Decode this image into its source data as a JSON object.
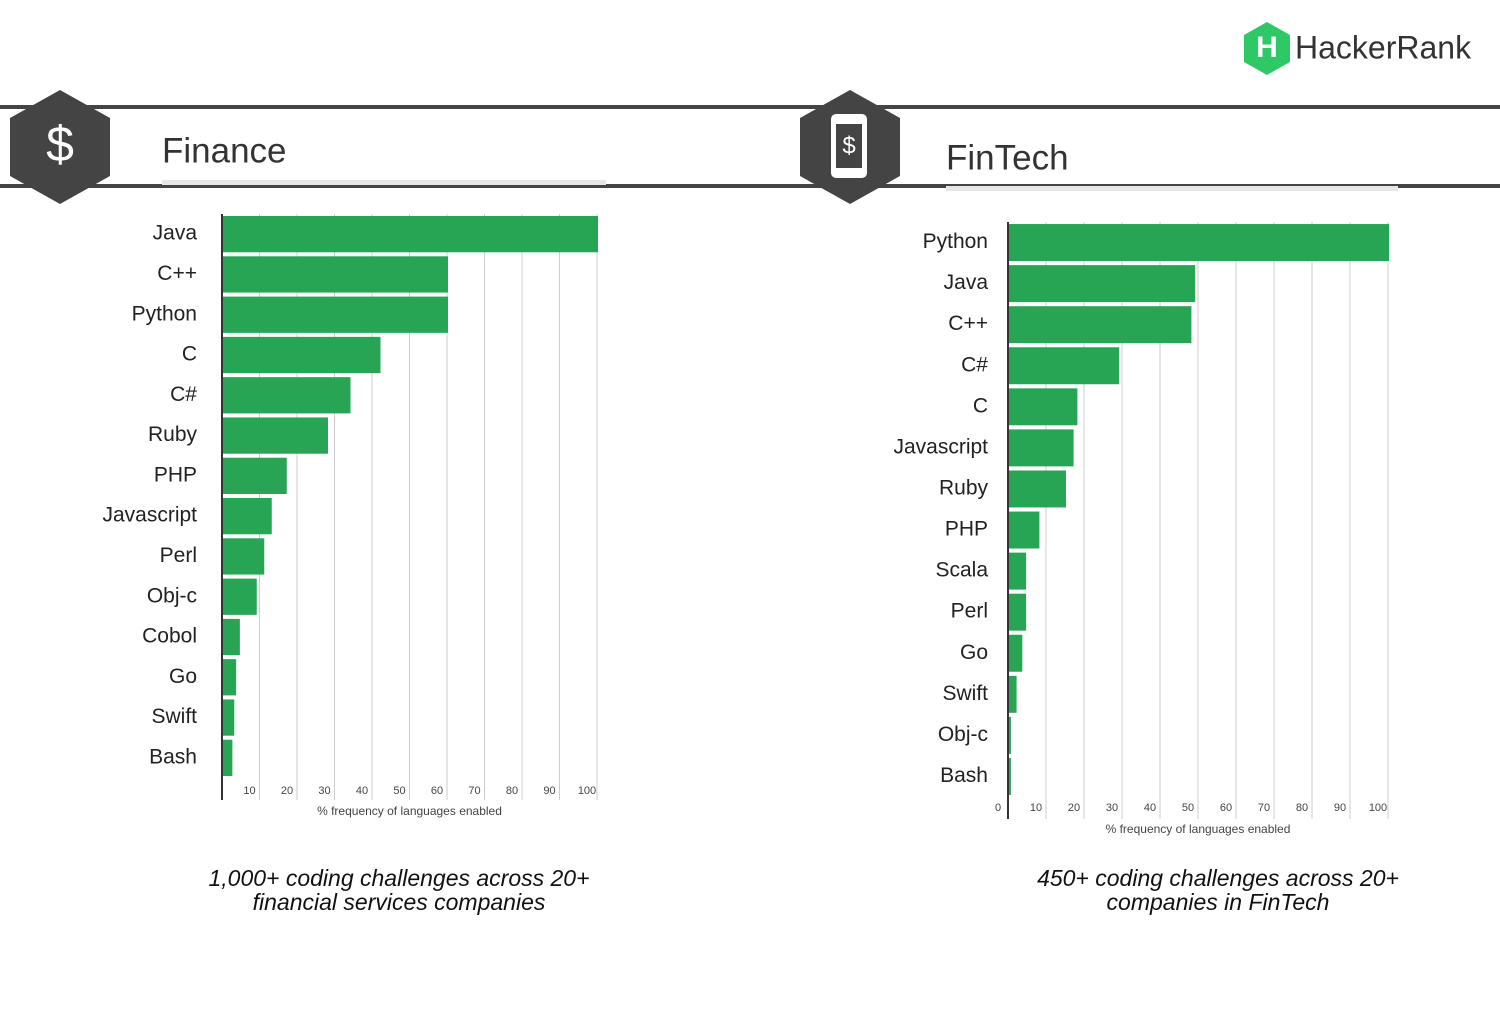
{
  "brand": "HackerRank",
  "chart_data": [
    {
      "type": "bar",
      "orientation": "horizontal",
      "title": "Finance",
      "categories": [
        "Java",
        "C++",
        "Python",
        "C",
        "C#",
        "Ruby",
        "PHP",
        "Javascript",
        "Perl",
        "Obj-c",
        "Cobol",
        "Go",
        "Swift",
        "Bash"
      ],
      "values": [
        100,
        60,
        60,
        42,
        34,
        28,
        17,
        13,
        11,
        9,
        4.5,
        3.5,
        3,
        2.5
      ],
      "color": "#27a555",
      "xlim": [
        0,
        100
      ],
      "xticks": [
        10,
        20,
        30,
        40,
        50,
        60,
        70,
        80,
        90,
        100
      ],
      "grid": true,
      "xlabel": "% frequency of languages enabled",
      "caption": [
        "1,000+ coding challenges across 20+",
        "financial services companies"
      ]
    },
    {
      "type": "bar",
      "orientation": "horizontal",
      "title": "FinTech",
      "categories": [
        "Python",
        "Java",
        "C++",
        "C#",
        "C",
        "Javascript",
        "Ruby",
        "PHP",
        "Scala",
        "Perl",
        "Go",
        "Swift",
        "Obj-c",
        "Bash"
      ],
      "values": [
        100,
        49,
        48,
        29,
        18,
        17,
        15,
        8,
        4.5,
        4.5,
        3.5,
        2,
        0.5,
        0.5
      ],
      "color": "#27a555",
      "xlim": [
        0,
        100
      ],
      "xticks": [
        0,
        10,
        20,
        30,
        40,
        50,
        60,
        70,
        80,
        90,
        100
      ],
      "grid": true,
      "xlabel": "% frequency of languages enabled",
      "caption": [
        "450+ coding  challenges across 20+",
        "companies in FinTech"
      ]
    }
  ]
}
